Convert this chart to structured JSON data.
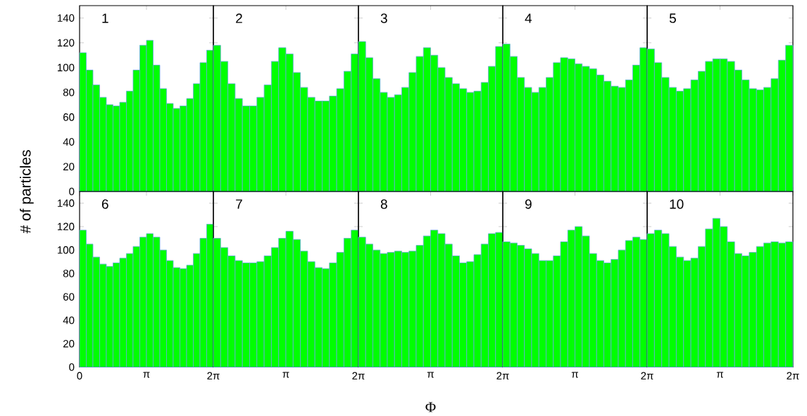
{
  "chart_data": [
    {
      "type": "histogram",
      "title": "1",
      "ylabel": "# of particles",
      "color": "#00ff00",
      "bins": [
        0,
        0.3142,
        0.6283,
        0.9425,
        1.2566,
        1.5708,
        1.885,
        2.1991,
        2.5133,
        2.8274,
        3.1416,
        3.4558,
        3.7699,
        4.0841,
        4.3982,
        4.7124,
        5.0265,
        5.3407,
        5.6549,
        5.969,
        6.2832
      ],
      "values": [
        112,
        98,
        86,
        76,
        70,
        69,
        72,
        81,
        98,
        118,
        122,
        102,
        83,
        71,
        67,
        69,
        75,
        87,
        104,
        114
      ],
      "xlim": [
        0,
        6.2832
      ],
      "ylim": [
        0,
        150
      ],
      "xticks": [
        {
          "value": 0,
          "label": null
        },
        {
          "value": 3.1416,
          "label": null
        },
        {
          "value": 6.2832,
          "label": null
        }
      ],
      "yticks": [
        0,
        20,
        40,
        60,
        80,
        100,
        120,
        140
      ],
      "tick_labels": "y"
    },
    {
      "type": "histogram",
      "title": "2",
      "color": "#00ff00",
      "bins": [
        0,
        0.3142,
        0.6283,
        0.9425,
        1.2566,
        1.5708,
        1.885,
        2.1991,
        2.5133,
        2.8274,
        3.1416,
        3.4558,
        3.7699,
        4.0841,
        4.3982,
        4.7124,
        5.0265,
        5.3407,
        5.6549,
        5.969,
        6.2832
      ],
      "values": [
        118,
        105,
        87,
        75,
        69,
        69,
        76,
        86,
        105,
        116,
        111,
        96,
        84,
        76,
        73,
        73,
        77,
        83,
        97,
        111
      ],
      "xlim": [
        0,
        6.2832
      ],
      "ylim": [
        0,
        150
      ],
      "xticks": [
        {
          "value": 0,
          "label": null
        },
        {
          "value": 3.1416,
          "label": null
        },
        {
          "value": 6.2832,
          "label": null
        }
      ],
      "yticks": [
        0,
        20,
        40,
        60,
        80,
        100,
        120,
        140
      ],
      "tick_labels": false
    },
    {
      "type": "histogram",
      "title": "3",
      "color": "#00ff00",
      "bins": [
        0,
        0.3142,
        0.6283,
        0.9425,
        1.2566,
        1.5708,
        1.885,
        2.1991,
        2.5133,
        2.8274,
        3.1416,
        3.4558,
        3.7699,
        4.0841,
        4.3982,
        4.7124,
        5.0265,
        5.3407,
        5.6549,
        5.969,
        6.2832
      ],
      "values": [
        121,
        108,
        91,
        80,
        76,
        78,
        84,
        96,
        109,
        116,
        110,
        100,
        92,
        87,
        83,
        80,
        81,
        88,
        101,
        117
      ],
      "xlim": [
        0,
        6.2832
      ],
      "ylim": [
        0,
        150
      ],
      "xticks": [
        {
          "value": 0,
          "label": null
        },
        {
          "value": 3.1416,
          "label": null
        },
        {
          "value": 6.2832,
          "label": null
        }
      ],
      "yticks": [
        0,
        20,
        40,
        60,
        80,
        100,
        120,
        140
      ],
      "tick_labels": false
    },
    {
      "type": "histogram",
      "title": "4",
      "color": "#00ff00",
      "bins": [
        0,
        0.3142,
        0.6283,
        0.9425,
        1.2566,
        1.5708,
        1.885,
        2.1991,
        2.5133,
        2.8274,
        3.1416,
        3.4558,
        3.7699,
        4.0841,
        4.3982,
        4.7124,
        5.0265,
        5.3407,
        5.6549,
        5.969,
        6.2832
      ],
      "values": [
        119,
        109,
        92,
        84,
        80,
        84,
        92,
        104,
        108,
        107,
        103,
        101,
        99,
        94,
        89,
        85,
        84,
        90,
        102,
        116
      ],
      "xlim": [
        0,
        6.2832
      ],
      "ylim": [
        0,
        150
      ],
      "xticks": [
        {
          "value": 0,
          "label": null
        },
        {
          "value": 3.1416,
          "label": null
        },
        {
          "value": 6.2832,
          "label": null
        }
      ],
      "yticks": [
        0,
        20,
        40,
        60,
        80,
        100,
        120,
        140
      ],
      "tick_labels": false
    },
    {
      "type": "histogram",
      "title": "5",
      "color": "#00ff00",
      "bins": [
        0,
        0.3142,
        0.6283,
        0.9425,
        1.2566,
        1.5708,
        1.885,
        2.1991,
        2.5133,
        2.8274,
        3.1416,
        3.4558,
        3.7699,
        4.0841,
        4.3982,
        4.7124,
        5.0265,
        5.3407,
        5.6549,
        5.969,
        6.2832
      ],
      "values": [
        115,
        104,
        92,
        84,
        81,
        83,
        90,
        97,
        105,
        107,
        107,
        105,
        98,
        90,
        83,
        82,
        84,
        91,
        106,
        118
      ],
      "xlim": [
        0,
        6.2832
      ],
      "ylim": [
        0,
        150
      ],
      "xticks": [
        {
          "value": 0,
          "label": null
        },
        {
          "value": 3.1416,
          "label": null
        },
        {
          "value": 6.2832,
          "label": null
        }
      ],
      "yticks": [
        0,
        20,
        40,
        60,
        80,
        100,
        120,
        140
      ],
      "tick_labels": false
    },
    {
      "type": "histogram",
      "title": "6",
      "color": "#00ff00",
      "bins": [
        0,
        0.3142,
        0.6283,
        0.9425,
        1.2566,
        1.5708,
        1.885,
        2.1991,
        2.5133,
        2.8274,
        3.1416,
        3.4558,
        3.7699,
        4.0841,
        4.3982,
        4.7124,
        5.0265,
        5.3407,
        5.6549,
        5.969,
        6.2832
      ],
      "values": [
        117,
        105,
        94,
        88,
        86,
        89,
        93,
        97,
        103,
        111,
        114,
        111,
        100,
        91,
        85,
        84,
        87,
        97,
        110,
        122
      ],
      "xlim": [
        0,
        6.2832
      ],
      "ylim": [
        0,
        150
      ],
      "xticks": [
        0,
        {
          "value": 3.1416,
          "label": "π"
        },
        {
          "value": 6.2832,
          "label": "2π"
        }
      ],
      "yticks": [
        0,
        20,
        40,
        60,
        80,
        100,
        120,
        140
      ]
    },
    {
      "type": "histogram",
      "title": "7",
      "color": "#00ff00",
      "bins": [
        0,
        0.3142,
        0.6283,
        0.9425,
        1.2566,
        1.5708,
        1.885,
        2.1991,
        2.5133,
        2.8274,
        3.1416,
        3.4558,
        3.7699,
        4.0841,
        4.3982,
        4.7124,
        5.0265,
        5.3407,
        5.6549,
        5.969,
        6.2832
      ],
      "values": [
        110,
        102,
        95,
        91,
        89,
        89,
        90,
        95,
        102,
        110,
        116,
        109,
        99,
        90,
        85,
        84,
        89,
        98,
        110,
        117
      ],
      "xlim": [
        0,
        6.2832
      ],
      "ylim": [
        0,
        150
      ],
      "xticks": [
        {
          "value": 0,
          "label": null
        },
        {
          "value": 3.1416,
          "label": "π"
        },
        {
          "value": 6.2832,
          "label": "2π"
        }
      ],
      "yticks": [
        0,
        20,
        40,
        60,
        80,
        100,
        120,
        140
      ],
      "tick_labels": "x"
    },
    {
      "type": "histogram",
      "title": "8",
      "xlabel": "Φ",
      "color": "#00ff00",
      "bins": [
        0,
        0.3142,
        0.6283,
        0.9425,
        1.2566,
        1.5708,
        1.885,
        2.1991,
        2.5133,
        2.8274,
        3.1416,
        3.4558,
        3.7699,
        4.0841,
        4.3982,
        4.7124,
        5.0265,
        5.3407,
        5.6549,
        5.969,
        6.2832
      ],
      "values": [
        111,
        105,
        100,
        97,
        98,
        99,
        98,
        99,
        104,
        112,
        117,
        114,
        105,
        95,
        89,
        90,
        96,
        105,
        114,
        115
      ],
      "xlim": [
        0,
        6.2832
      ],
      "ylim": [
        0,
        150
      ],
      "xticks": [
        {
          "value": 0,
          "label": null
        },
        {
          "value": 3.1416,
          "label": "π"
        },
        {
          "value": 6.2832,
          "label": "2π"
        }
      ],
      "yticks": [
        0,
        20,
        40,
        60,
        80,
        100,
        120,
        140
      ],
      "tick_labels": "x"
    },
    {
      "type": "histogram",
      "title": "9",
      "color": "#00ff00",
      "bins": [
        0,
        0.3142,
        0.6283,
        0.9425,
        1.2566,
        1.5708,
        1.885,
        2.1991,
        2.5133,
        2.8274,
        3.1416,
        3.4558,
        3.7699,
        4.0841,
        4.3982,
        4.7124,
        5.0265,
        5.3407,
        5.6549,
        5.969,
        6.2832
      ],
      "values": [
        107,
        106,
        104,
        101,
        97,
        91,
        91,
        95,
        107,
        117,
        120,
        112,
        97,
        91,
        89,
        92,
        100,
        108,
        111,
        109
      ],
      "xlim": [
        0,
        6.2832
      ],
      "ylim": [
        0,
        150
      ],
      "xticks": [
        {
          "value": 0,
          "label": null
        },
        {
          "value": 3.1416,
          "label": "π"
        },
        {
          "value": 6.2832,
          "label": "2π"
        }
      ],
      "yticks": [
        0,
        20,
        40,
        60,
        80,
        100,
        120,
        140
      ],
      "tick_labels": "x"
    },
    {
      "type": "histogram",
      "title": "10",
      "color": "#00ff00",
      "bins": [
        0,
        0.3142,
        0.6283,
        0.9425,
        1.2566,
        1.5708,
        1.885,
        2.1991,
        2.5133,
        2.8274,
        3.1416,
        3.4558,
        3.7699,
        4.0841,
        4.3982,
        4.7124,
        5.0265,
        5.3407,
        5.6549,
        5.969,
        6.2832
      ],
      "values": [
        114,
        117,
        114,
        103,
        94,
        91,
        93,
        103,
        118,
        127,
        120,
        107,
        97,
        95,
        98,
        103,
        106,
        107,
        106,
        107
      ],
      "xlim": [
        0,
        6.2832
      ],
      "ylim": [
        0,
        150
      ],
      "xticks": [
        {
          "value": 0,
          "label": null
        },
        {
          "value": 3.1416,
          "label": "π"
        },
        {
          "value": 6.2832,
          "label": "2π"
        }
      ],
      "yticks": [
        0,
        20,
        40,
        60,
        80,
        100,
        120,
        140
      ],
      "tick_labels": "x"
    }
  ]
}
